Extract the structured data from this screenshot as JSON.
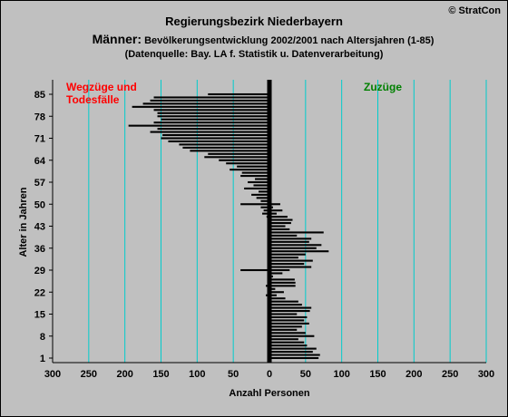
{
  "header": {
    "title": "Regierungsbezirk Niederbayern",
    "subtitle_lead": "Männer:",
    "subtitle_rest": " Bevölkerungsentwicklung 2002/2001 nach Altersjahren (1-85)",
    "source": "(Datenquelle: Bay. LA f. Statistik u. Datenverarbeitung)",
    "copyright": "© StratCon"
  },
  "chart_data": {
    "type": "bar",
    "orientation": "horizontal",
    "ylabel": "Alter in Jahren",
    "xlabel": "Anzahl Personen",
    "xlim": [
      -300,
      300
    ],
    "ylim": [
      1,
      85
    ],
    "x_ticks": [
      "300",
      "250",
      "200",
      "150",
      "100",
      "50",
      "0",
      "50",
      "100",
      "150",
      "200",
      "250",
      "300"
    ],
    "y_ticks": [
      "85",
      "78",
      "71",
      "64",
      "57",
      "50",
      "43",
      "36",
      "29",
      "22",
      "15",
      "8",
      "1"
    ],
    "annotations": {
      "left_label": [
        "Wegzüge und",
        "Todesfälle"
      ],
      "right_label": "Zuzüge"
    },
    "colors": {
      "background": "#c0c0c0",
      "grid": "#00cccc",
      "bars": "#000000",
      "zero_line": "#000000",
      "left_label": "#ff0000",
      "right_label": "#008000"
    },
    "grid": true,
    "series": [
      {
        "name": "Wegzüge und Todesfälle",
        "ages": [
          1,
          2,
          3,
          4,
          5,
          6,
          7,
          8,
          9,
          10,
          11,
          12,
          13,
          14,
          15,
          16,
          17,
          18,
          19,
          20,
          21,
          22,
          23,
          24,
          25,
          26,
          27,
          28,
          29,
          30,
          31,
          32,
          33,
          34,
          35,
          36,
          37,
          38,
          39,
          40,
          41,
          42,
          43,
          44,
          45,
          46,
          47,
          48,
          49,
          50,
          51,
          52,
          53,
          54,
          55,
          56,
          57,
          58,
          59,
          60,
          61,
          62,
          63,
          64,
          65,
          66,
          67,
          68,
          69,
          70,
          71,
          72,
          73,
          74,
          75,
          76,
          77,
          78,
          79,
          80,
          81,
          82,
          83,
          84,
          85
        ],
        "values": [
          0,
          0,
          0,
          0,
          0,
          0,
          0,
          0,
          0,
          0,
          0,
          0,
          0,
          0,
          0,
          0,
          0,
          0,
          0,
          -2,
          -5,
          -3,
          -2,
          -5,
          -3,
          -2,
          -1,
          -2,
          -40,
          -2,
          -1,
          0,
          0,
          0,
          0,
          0,
          0,
          0,
          0,
          0,
          0,
          0,
          0,
          0,
          -2,
          -4,
          -10,
          -8,
          -12,
          -40,
          -12,
          -18,
          -25,
          -15,
          -35,
          -22,
          -30,
          -20,
          -40,
          -38,
          -55,
          -45,
          -60,
          -70,
          -90,
          -85,
          -110,
          -120,
          -125,
          -140,
          -150,
          -148,
          -165,
          -155,
          -195,
          -160,
          -150,
          -155,
          -155,
          -160,
          -190,
          -175,
          -165,
          -160,
          -85
        ]
      },
      {
        "name": "Zuzüge",
        "ages": [
          1,
          2,
          3,
          4,
          5,
          6,
          7,
          8,
          9,
          10,
          11,
          12,
          13,
          14,
          15,
          16,
          17,
          18,
          19,
          20,
          21,
          22,
          23,
          24,
          25,
          26,
          27,
          28,
          29,
          30,
          31,
          32,
          33,
          34,
          35,
          36,
          37,
          38,
          39,
          40,
          41,
          42,
          43,
          44,
          45,
          46,
          47,
          48,
          49,
          50,
          51,
          52,
          53,
          54,
          55,
          56,
          57,
          58,
          59,
          60,
          61,
          62,
          63,
          64,
          65,
          66,
          67,
          68,
          69,
          70,
          71,
          72,
          73,
          74,
          75,
          76,
          77,
          78,
          79,
          80,
          81,
          82,
          83,
          84,
          85
        ],
        "values": [
          68,
          70,
          60,
          65,
          52,
          48,
          40,
          62,
          50,
          38,
          45,
          55,
          48,
          52,
          38,
          56,
          58,
          45,
          40,
          22,
          10,
          20,
          8,
          36,
          36,
          35,
          5,
          18,
          28,
          58,
          48,
          60,
          40,
          50,
          82,
          65,
          72,
          55,
          58,
          38,
          75,
          28,
          22,
          30,
          32,
          25,
          10,
          18,
          5,
          15,
          2,
          0,
          0,
          0,
          0,
          0,
          0,
          0,
          0,
          0,
          0,
          0,
          0,
          0,
          0,
          0,
          0,
          0,
          0,
          0,
          0,
          0,
          0,
          0,
          0,
          0,
          0,
          0,
          0,
          0,
          0,
          0,
          0,
          0,
          0
        ]
      }
    ]
  }
}
